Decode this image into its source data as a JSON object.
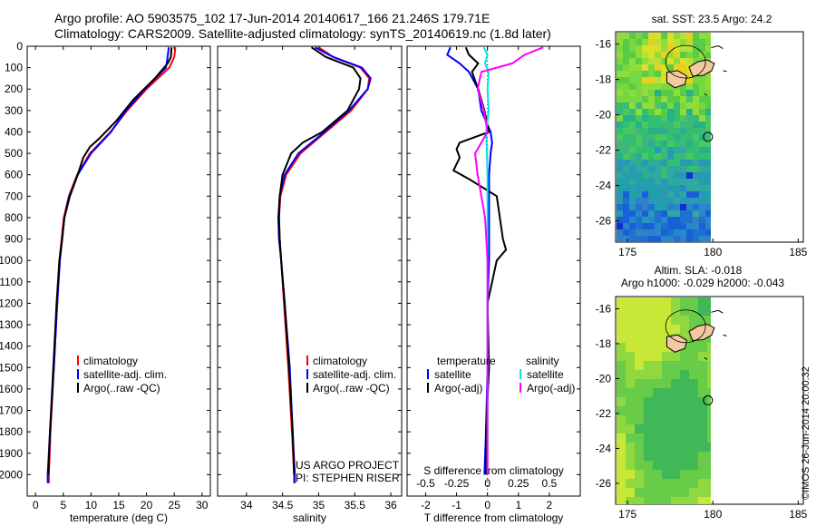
{
  "titles": {
    "line1": "Argo profile: AO 5903575_102 17-Jun-2014 20140617_166 21.246S 179.71E",
    "line2": "Climatology: CARS2009. Satellite-adjusted climatology: synTS_20140619.nc (1.8d later)"
  },
  "colors": {
    "climatology": "#ff0000",
    "satellite": "#0000ff",
    "argo": "#000000",
    "satellite_salinity": "#00e5e5",
    "argo_salinity": "#ff00ff"
  },
  "chart_data": [
    {
      "type": "line",
      "id": "temperature",
      "xlabel": "temperature (deg C)",
      "ylabel": "",
      "xlim": [
        -1.5,
        31.5
      ],
      "ylim": [
        2100,
        0
      ],
      "xticks": [
        0,
        5,
        10,
        15,
        20,
        25,
        30
      ],
      "yticks": [
        0,
        100,
        200,
        300,
        400,
        500,
        600,
        700,
        800,
        900,
        1000,
        1100,
        1200,
        1300,
        1400,
        1500,
        1600,
        1700,
        1800,
        1900,
        2000
      ],
      "legend": [
        "climatology",
        "satellite-adj. clim.",
        "Argo(..raw -QC)"
      ],
      "legend_position": "bottom-left",
      "series": [
        {
          "name": "climatology",
          "color_key": "climatology",
          "depth": [
            5,
            50,
            100,
            200,
            300,
            400,
            500,
            600,
            700,
            800,
            1000,
            1200,
            1500,
            1800,
            2000,
            2040
          ],
          "values": [
            25.2,
            25.0,
            24.1,
            20.0,
            16.5,
            13.5,
            9.8,
            7.5,
            6.0,
            5.1,
            4.3,
            3.9,
            3.3,
            2.7,
            2.4,
            2.4
          ]
        },
        {
          "name": "satellite-adj. clim.",
          "color_key": "satellite",
          "depth": [
            5,
            50,
            100,
            200,
            300,
            400,
            500,
            600,
            700,
            800,
            1000,
            1200,
            1500,
            1800,
            2000,
            2040
          ],
          "values": [
            24.0,
            23.8,
            23.5,
            19.7,
            16.3,
            13.6,
            10.0,
            7.6,
            6.1,
            5.2,
            4.4,
            3.9,
            3.3,
            2.6,
            2.2,
            2.2
          ]
        },
        {
          "name": "Argo(..raw -QC)",
          "color_key": "argo",
          "depth": [
            5,
            50,
            80,
            150,
            250,
            350,
            430,
            470,
            520,
            600,
            700,
            800,
            900,
            1000,
            1200,
            1500,
            1800,
            2000
          ],
          "values": [
            24.5,
            24.4,
            23.8,
            21.5,
            17.6,
            14.5,
            11.5,
            9.8,
            8.6,
            7.6,
            6.2,
            5.2,
            4.8,
            4.3,
            3.8,
            3.2,
            2.6,
            2.3
          ]
        }
      ]
    },
    {
      "type": "line",
      "id": "salinity",
      "xlabel": "salinity",
      "ylabel": "",
      "xlim": [
        33.6,
        36.15
      ],
      "ylim": [
        2100,
        0
      ],
      "xticks": [
        34,
        34.5,
        35,
        35.5,
        36
      ],
      "legend": [
        "climatology",
        "satellite-adj. clim.",
        "Argo(..raw -QC)"
      ],
      "legend_position": "bottom-right",
      "annotations": [
        "US ARGO PROJECT",
        "PI: STEPHEN RISER"
      ],
      "series": [
        {
          "name": "climatology",
          "color_key": "climatology",
          "depth": [
            5,
            50,
            100,
            150,
            200,
            300,
            400,
            500,
            600,
            700,
            800,
            900,
            1000,
            1200,
            1500,
            1800,
            2000,
            2040
          ],
          "values": [
            35.0,
            35.2,
            35.58,
            35.7,
            35.68,
            35.45,
            35.1,
            34.75,
            34.55,
            34.47,
            34.45,
            34.46,
            34.48,
            34.52,
            34.58,
            34.63,
            34.66,
            34.66
          ]
        },
        {
          "name": "satellite-adj. clim.",
          "color_key": "satellite",
          "depth": [
            5,
            50,
            100,
            150,
            200,
            300,
            400,
            500,
            600,
            700,
            800,
            900,
            1000,
            1200,
            1500,
            1800,
            2000,
            2040
          ],
          "values": [
            34.95,
            35.2,
            35.6,
            35.72,
            35.68,
            35.42,
            35.08,
            34.72,
            34.53,
            34.46,
            34.44,
            34.45,
            34.48,
            34.53,
            34.6,
            34.64,
            34.67,
            34.67
          ]
        },
        {
          "name": "Argo(..raw -QC)",
          "color_key": "argo",
          "depth": [
            5,
            50,
            100,
            150,
            200,
            300,
            400,
            450,
            500,
            600,
            700,
            800,
            900,
            1000,
            1200,
            1500,
            1800,
            2000
          ],
          "values": [
            34.9,
            35.1,
            35.48,
            35.58,
            35.56,
            35.4,
            35.05,
            34.78,
            34.62,
            34.5,
            34.46,
            34.45,
            34.46,
            34.48,
            34.53,
            34.59,
            34.64,
            34.66
          ]
        }
      ]
    },
    {
      "type": "line",
      "id": "difference",
      "xlabel": "T difference from climatology",
      "xlabel_top": "S difference from climatology",
      "xlim": [
        -2.6,
        3.0
      ],
      "ylim": [
        2100,
        0
      ],
      "xticks": [
        -2,
        -1,
        0,
        1,
        2
      ],
      "xticks_top": [
        -0.5,
        -0.25,
        0,
        0.25,
        0.5
      ],
      "legend_headers": [
        "temperature",
        "salinity"
      ],
      "legend": [
        "satellite",
        "Argo(-adj)",
        "satellite",
        "Argo(-adj)"
      ],
      "legend_position": "bottom-center",
      "series": [
        {
          "name": "satellite",
          "group": "temperature",
          "color_key": "satellite",
          "depth": [
            5,
            40,
            80,
            120,
            200,
            300,
            400,
            450,
            500,
            600,
            800,
            1000,
            1200,
            1500,
            1800,
            2000
          ],
          "values": [
            -1.2,
            -1.3,
            -0.9,
            -0.6,
            -0.3,
            -0.2,
            0.1,
            0.15,
            0.1,
            0.05,
            0.05,
            0.05,
            0.0,
            0.0,
            -0.05,
            -0.1
          ]
        },
        {
          "name": "Argo(-adj)",
          "group": "temperature",
          "color_key": "argo",
          "depth": [
            5,
            40,
            80,
            120,
            200,
            300,
            400,
            450,
            480,
            520,
            580,
            620,
            700,
            800,
            900,
            950,
            1000,
            1200,
            1500,
            1800,
            2000
          ],
          "values": [
            -0.7,
            -0.6,
            -0.3,
            -0.5,
            -0.3,
            -0.1,
            0.05,
            -0.9,
            -1.0,
            -0.9,
            -1.1,
            -0.6,
            0.3,
            0.4,
            0.5,
            0.6,
            0.3,
            0.0,
            0.05,
            -0.05,
            -0.05
          ]
        },
        {
          "name": "satellite",
          "group": "salinity",
          "color_key": "satellite_salinity",
          "depth": [
            5,
            40,
            80,
            120,
            200,
            300,
            400,
            600,
            800,
            1000,
            1500,
            2000
          ],
          "values": [
            -0.03,
            0.0,
            -0.02,
            0.01,
            0.0,
            0.01,
            -0.01,
            0.0,
            0.0,
            0.0,
            0.0,
            0.0
          ]
        },
        {
          "name": "Argo(-adj)",
          "group": "salinity",
          "color_key": "argo_salinity",
          "depth": [
            5,
            40,
            80,
            120,
            200,
            300,
            400,
            450,
            500,
            600,
            700,
            800,
            1000,
            1500,
            2000
          ],
          "values": [
            0.45,
            0.3,
            0.2,
            -0.05,
            -0.08,
            -0.03,
            0.0,
            -0.05,
            -0.1,
            -0.08,
            -0.05,
            -0.02,
            0.0,
            0.0,
            0.0
          ]
        }
      ]
    },
    {
      "type": "heatmap",
      "id": "sst_map",
      "title": "sat. SST: 23.5 Argo: 24.2",
      "xlim": [
        174.3,
        185.3
      ],
      "ylim": [
        -27.2,
        -15.3
      ],
      "xticks": [
        175,
        180,
        185
      ],
      "yticks": [
        -16,
        -18,
        -20,
        -22,
        -24,
        -26
      ],
      "marker": {
        "lon": 179.71,
        "lat": -21.246,
        "shape": "circle"
      }
    },
    {
      "type": "heatmap",
      "id": "sla_map",
      "title": "Altim. SLA: -0.018",
      "subtitle": "Argo h1000: -0.029 h2000: -0.043",
      "xlim": [
        174.3,
        185.3
      ],
      "ylim": [
        -27.2,
        -15.3
      ],
      "xticks": [
        175,
        180,
        185
      ],
      "yticks": [
        -16,
        -18,
        -20,
        -22,
        -24,
        -26
      ],
      "marker": {
        "lon": 179.71,
        "lat": -21.246,
        "shape": "circle"
      }
    }
  ],
  "watermark": "©IMOS 26-Jun-2014 20:00:32"
}
